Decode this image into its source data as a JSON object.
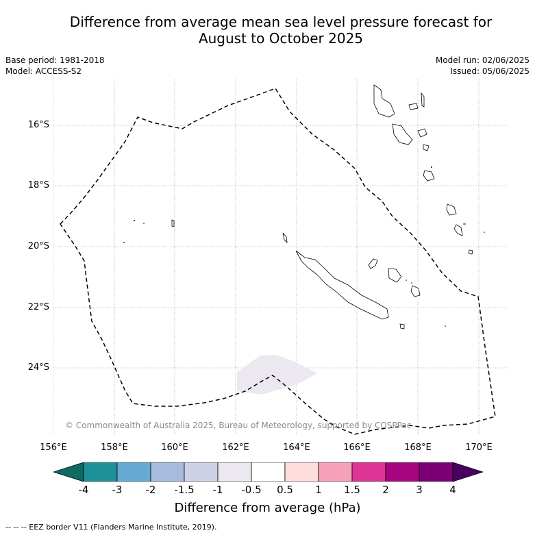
{
  "title_line1": "Difference from average mean sea level pressure forecast for",
  "title_line2": "August to October 2025",
  "meta": {
    "base_period": "Base period: 1981-2018",
    "model": "Model: ACCESS-S2",
    "model_run": "Model run: 02/06/2025",
    "issued": "Issued: 05/06/2025"
  },
  "lat_labels": [
    "16°S",
    "18°S",
    "20°S",
    "22°S",
    "24°S"
  ],
  "lon_labels": [
    "156°E",
    "158°E",
    "160°E",
    "162°E",
    "164°E",
    "166°E",
    "168°E",
    "170°E"
  ],
  "credit": "© Commonwealth of Australia 2025, Bureau of Meteorology, supported by COSPPac",
  "colorbar": {
    "title": "Difference from average (hPa)",
    "ticks": [
      "-4",
      "-3",
      "-2",
      "-1.5",
      "-1",
      "-0.5",
      "0.5",
      "1",
      "1.5",
      "2",
      "3",
      "4"
    ],
    "colors": [
      "#0d6b63",
      "#1d9198",
      "#68abd2",
      "#a6bcde",
      "#cfd1e7",
      "#ebe9ef",
      "#ffffff",
      "#fddedd",
      "#f6a0bb",
      "#dd3495",
      "#a8047f",
      "#7b0074",
      "#4a0060"
    ]
  },
  "footnote": "--  --  -- EEZ border V11 (Flanders Marine Institute, 2019)."
}
